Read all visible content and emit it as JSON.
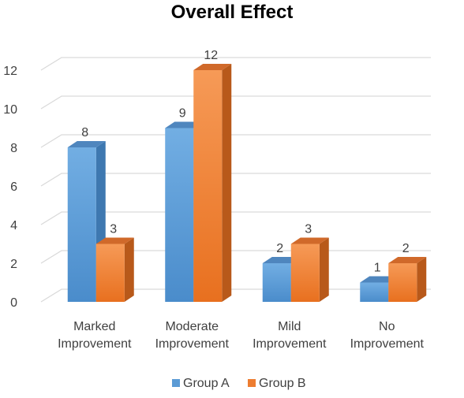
{
  "chart_data": {
    "type": "bar",
    "title": "Overall Effect",
    "categories": [
      [
        "Marked",
        "Improvement"
      ],
      [
        "Moderate",
        "Improvement"
      ],
      [
        "Mild",
        "Improvement"
      ],
      [
        "No",
        "Improvement"
      ]
    ],
    "series": [
      {
        "name": "Group A",
        "values": [
          8,
          9,
          2,
          1
        ]
      },
      {
        "name": "Group B",
        "values": [
          3,
          12,
          3,
          2
        ]
      }
    ],
    "yticks": [
      "0",
      "2",
      "4",
      "6",
      "8",
      "10",
      "12"
    ],
    "ylim": [
      0,
      12
    ],
    "grid": true,
    "legend": "bottom",
    "three_d": true
  },
  "colors": {
    "Group A": "#5b9bd5",
    "Group B": "#ed7d31",
    "grid": "#d9d9d9",
    "label": "#404040"
  }
}
